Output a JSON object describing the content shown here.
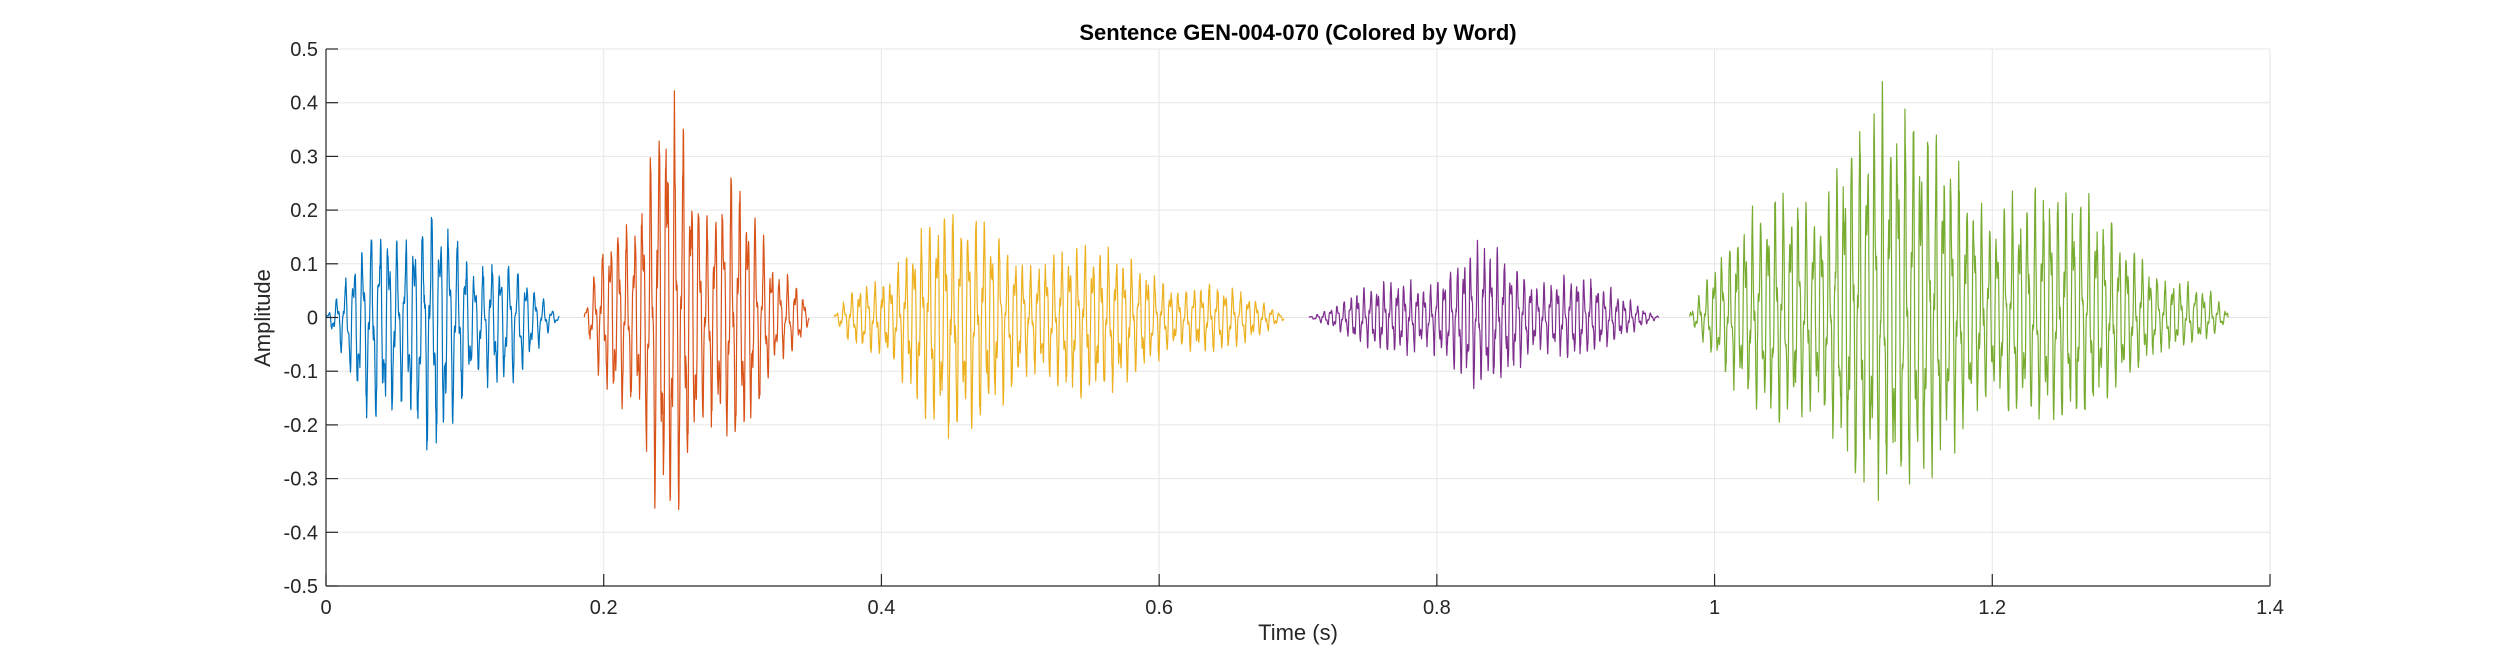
{
  "chart_data": {
    "type": "line",
    "title": "Sentence GEN-004-070 (Colored by Word)",
    "xlabel": "Time (s)",
    "ylabel": "Amplitude",
    "xlim": [
      0,
      1.4
    ],
    "ylim": [
      -0.5,
      0.5
    ],
    "xticks": [
      0,
      0.2,
      0.4,
      0.6,
      0.8,
      1,
      1.2,
      1.4
    ],
    "xtick_labels": [
      "0",
      "0.2",
      "0.4",
      "0.6",
      "0.8",
      "1",
      "1.2",
      "1.4"
    ],
    "yticks": [
      -0.5,
      -0.4,
      -0.3,
      -0.2,
      -0.1,
      0,
      0.1,
      0.2,
      0.3,
      0.4,
      0.5
    ],
    "ytick_labels": [
      "-0.5",
      "-0.4",
      "-0.3",
      "-0.2",
      "-0.1",
      "0",
      "0.1",
      "0.2",
      "0.3",
      "0.4",
      "0.5"
    ],
    "grid": true,
    "legend": "none",
    "series": [
      {
        "color": "#0072BD",
        "start": 0.0,
        "end": 0.168,
        "peak_pos": 0.31,
        "amp_max": 0.26,
        "amp_min": 0.33,
        "period": 0.0062
      },
      {
        "color": "#D95319",
        "start": 0.186,
        "end": 0.348,
        "peak_pos": 0.35,
        "amp_max": 0.48,
        "amp_min": 0.44,
        "period": 0.0058
      },
      {
        "color": "#EDB120",
        "start": 0.366,
        "end": 0.69,
        "peak_pos": 0.22,
        "amp_max": 0.23,
        "amp_min": 0.25,
        "period": 0.0056
      },
      {
        "color": "#7E2F8E",
        "start": 0.708,
        "end": 0.96,
        "peak_pos": 0.5,
        "amp_max": 0.15,
        "amp_min": 0.15,
        "period": 0.0048
      },
      {
        "color": "#77AC30",
        "start": 0.982,
        "end": 1.37,
        "peak_pos": 0.3,
        "amp_max": 0.49,
        "amp_min": 0.4,
        "period": 0.0055
      }
    ]
  }
}
